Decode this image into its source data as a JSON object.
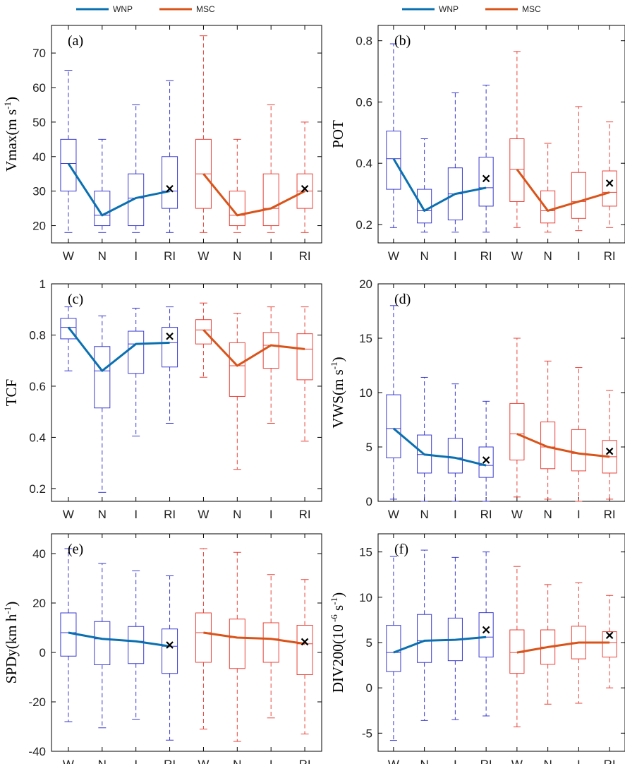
{
  "legend": {
    "entries": [
      {
        "name": "WNP",
        "color": "#0b70b0"
      },
      {
        "name": "MSC",
        "color": "#d9541a"
      }
    ]
  },
  "chart_data": [
    {
      "type": "box",
      "panel_label": "(a)",
      "ylabel": {
        "main": "Vmax(m s",
        "sup": "-1",
        "tail": ")"
      },
      "ylim": [
        15,
        78
      ],
      "yticks": [
        20,
        30,
        40,
        50,
        60,
        70
      ],
      "ytick_labels": [
        "20",
        "30",
        "40",
        "50",
        "60",
        "70"
      ],
      "categories": [
        "W",
        "N",
        "I",
        "RI"
      ],
      "series": [
        {
          "name": "WNP",
          "box_color": "#3b3bd0",
          "line_color": "#0b70b0",
          "boxes": [
            {
              "whislo": 18,
              "q1": 30,
              "med": 38,
              "q3": 45,
              "whishi": 65
            },
            {
              "whislo": 18,
              "q1": 20,
              "med": 23,
              "q3": 30,
              "whishi": 45
            },
            {
              "whislo": 18,
              "q1": 20,
              "med": 28,
              "q3": 35,
              "whishi": 55
            },
            {
              "whislo": 18,
              "q1": 25,
              "med": 30,
              "q3": 40,
              "whishi": 62
            }
          ],
          "mean_RI": 30.7
        },
        {
          "name": "MSC",
          "box_color": "#e8433a",
          "line_color": "#d9541a",
          "boxes": [
            {
              "whislo": 18,
              "q1": 25,
              "med": 35,
              "q3": 45,
              "whishi": 75
            },
            {
              "whislo": 18,
              "q1": 20,
              "med": 23,
              "q3": 30,
              "whishi": 45
            },
            {
              "whislo": 18,
              "q1": 20,
              "med": 25,
              "q3": 35,
              "whishi": 55
            },
            {
              "whislo": 18,
              "q1": 25,
              "med": 30,
              "q3": 35,
              "whishi": 50
            }
          ],
          "mean_RI": 30.7
        }
      ]
    },
    {
      "type": "box",
      "panel_label": "(b)",
      "ylabel": {
        "main": "POT",
        "sup": "",
        "tail": ""
      },
      "ylim": [
        0.14,
        0.85
      ],
      "yticks": [
        0.2,
        0.4,
        0.6,
        0.8
      ],
      "ytick_labels": [
        "0.2",
        "0.4",
        "0.6",
        "0.8"
      ],
      "categories": [
        "W",
        "N",
        "I",
        "RI"
      ],
      "series": [
        {
          "name": "WNP",
          "box_color": "#3b3bd0",
          "line_color": "#0b70b0",
          "boxes": [
            {
              "whislo": 0.19,
              "q1": 0.315,
              "med": 0.415,
              "q3": 0.505,
              "whishi": 0.79
            },
            {
              "whislo": 0.175,
              "q1": 0.205,
              "med": 0.245,
              "q3": 0.315,
              "whishi": 0.48
            },
            {
              "whislo": 0.175,
              "q1": 0.215,
              "med": 0.3,
              "q3": 0.385,
              "whishi": 0.63
            },
            {
              "whislo": 0.175,
              "q1": 0.26,
              "med": 0.32,
              "q3": 0.42,
              "whishi": 0.655
            }
          ],
          "mean_RI": 0.35
        },
        {
          "name": "MSC",
          "box_color": "#e8433a",
          "line_color": "#d9541a",
          "boxes": [
            {
              "whislo": 0.19,
              "q1": 0.275,
              "med": 0.38,
              "q3": 0.48,
              "whishi": 0.765
            },
            {
              "whislo": 0.175,
              "q1": 0.205,
              "med": 0.245,
              "q3": 0.31,
              "whishi": 0.465
            },
            {
              "whislo": 0.18,
              "q1": 0.22,
              "med": 0.275,
              "q3": 0.37,
              "whishi": 0.585
            },
            {
              "whislo": 0.19,
              "q1": 0.26,
              "med": 0.305,
              "q3": 0.375,
              "whishi": 0.535
            }
          ],
          "mean_RI": 0.335
        }
      ]
    },
    {
      "type": "box",
      "panel_label": "(c)",
      "ylabel": {
        "main": "TCF",
        "sup": "",
        "tail": ""
      },
      "ylim": [
        0.15,
        1.0
      ],
      "yticks": [
        0.2,
        0.4,
        0.6,
        0.8,
        1.0
      ],
      "ytick_labels": [
        "0.2",
        "0.4",
        "0.6",
        "0.8",
        "1"
      ],
      "categories": [
        "W",
        "N",
        "I",
        "RI"
      ],
      "series": [
        {
          "name": "WNP",
          "box_color": "#3b3bd0",
          "line_color": "#0b70b0",
          "boxes": [
            {
              "whislo": 0.66,
              "q1": 0.785,
              "med": 0.83,
              "q3": 0.865,
              "whishi": 0.91
            },
            {
              "whislo": 0.185,
              "q1": 0.515,
              "med": 0.66,
              "q3": 0.755,
              "whishi": 0.875
            },
            {
              "whislo": 0.405,
              "q1": 0.65,
              "med": 0.765,
              "q3": 0.815,
              "whishi": 0.905
            },
            {
              "whislo": 0.455,
              "q1": 0.675,
              "med": 0.77,
              "q3": 0.83,
              "whishi": 0.91
            }
          ],
          "mean_RI": 0.795
        },
        {
          "name": "MSC",
          "box_color": "#e8433a",
          "line_color": "#d9541a",
          "boxes": [
            {
              "whislo": 0.635,
              "q1": 0.765,
              "med": 0.82,
              "q3": 0.86,
              "whishi": 0.925
            },
            {
              "whislo": 0.275,
              "q1": 0.56,
              "med": 0.68,
              "q3": 0.77,
              "whishi": 0.885
            },
            {
              "whislo": 0.455,
              "q1": 0.67,
              "med": 0.76,
              "q3": 0.81,
              "whishi": 0.91
            },
            {
              "whislo": 0.385,
              "q1": 0.625,
              "med": 0.745,
              "q3": 0.805,
              "whishi": 0.91
            }
          ],
          "mean_RI": null
        }
      ]
    },
    {
      "type": "box",
      "panel_label": "(d)",
      "ylabel": {
        "main": "VWS(m s",
        "sup": "-1",
        "tail": ")"
      },
      "ylim": [
        0,
        20
      ],
      "yticks": [
        0,
        5,
        10,
        15,
        20
      ],
      "ytick_labels": [
        "0",
        "5",
        "10",
        "15",
        "20"
      ],
      "categories": [
        "W",
        "N",
        "I",
        "RI"
      ],
      "series": [
        {
          "name": "WNP",
          "box_color": "#3b3bd0",
          "line_color": "#0b70b0",
          "boxes": [
            {
              "whislo": 0.2,
              "q1": 4.0,
              "med": 6.7,
              "q3": 9.8,
              "whishi": 18.0
            },
            {
              "whislo": 0.0,
              "q1": 2.6,
              "med": 4.3,
              "q3": 6.1,
              "whishi": 11.4
            },
            {
              "whislo": 0.0,
              "q1": 2.6,
              "med": 4.0,
              "q3": 5.8,
              "whishi": 10.8
            },
            {
              "whislo": 0.0,
              "q1": 2.2,
              "med": 3.3,
              "q3": 5.0,
              "whishi": 9.2
            }
          ],
          "mean_RI": 3.8
        },
        {
          "name": "MSC",
          "box_color": "#e8433a",
          "line_color": "#d9541a",
          "boxes": [
            {
              "whislo": 0.4,
              "q1": 3.8,
              "med": 6.2,
              "q3": 9.0,
              "whishi": 15.0
            },
            {
              "whislo": 0.2,
              "q1": 3.0,
              "med": 5.0,
              "q3": 7.3,
              "whishi": 12.9
            },
            {
              "whislo": 0.0,
              "q1": 2.8,
              "med": 4.4,
              "q3": 6.6,
              "whishi": 12.3
            },
            {
              "whislo": 0.2,
              "q1": 2.6,
              "med": 4.1,
              "q3": 5.6,
              "whishi": 10.2
            }
          ],
          "mean_RI": 4.6
        }
      ]
    },
    {
      "type": "box",
      "panel_label": "(e)",
      "ylabel": {
        "main": "SPDy(km h",
        "sup": "-1",
        "tail": ")"
      },
      "ylim": [
        -40,
        48
      ],
      "yticks": [
        -40,
        -20,
        0,
        20,
        40
      ],
      "ytick_labels": [
        "-40",
        "-20",
        "0",
        "20",
        "40"
      ],
      "categories": [
        "W",
        "N",
        "I",
        "RI"
      ],
      "series": [
        {
          "name": "WNP",
          "box_color": "#3b3bd0",
          "line_color": "#0b70b0",
          "boxes": [
            {
              "whislo": -28,
              "q1": -1.5,
              "med": 8,
              "q3": 16,
              "whishi": 42
            },
            {
              "whislo": -30.5,
              "q1": -5,
              "med": 5.5,
              "q3": 12.5,
              "whishi": 36
            },
            {
              "whislo": -27,
              "q1": -4.5,
              "med": 4.5,
              "q3": 10.5,
              "whishi": 33
            },
            {
              "whislo": -35.5,
              "q1": -8.5,
              "med": 2.5,
              "q3": 9.5,
              "whishi": 31
            }
          ],
          "mean_RI": 3.0
        },
        {
          "name": "MSC",
          "box_color": "#e8433a",
          "line_color": "#d9541a",
          "boxes": [
            {
              "whislo": -31,
              "q1": -4,
              "med": 8,
              "q3": 16,
              "whishi": 42
            },
            {
              "whislo": -36,
              "q1": -6.5,
              "med": 6,
              "q3": 13.5,
              "whishi": 40.5
            },
            {
              "whislo": -26.5,
              "q1": -4,
              "med": 5.5,
              "q3": 12,
              "whishi": 31.5
            },
            {
              "whislo": -33,
              "q1": -9,
              "med": 3.5,
              "q3": 11,
              "whishi": 29.5
            }
          ],
          "mean_RI": 4.3
        }
      ]
    },
    {
      "type": "box",
      "panel_label": "(f)",
      "ylabel": {
        "main": "DIV200(10",
        "sup": " -6",
        "tail": " s",
        "sup2": "-1",
        "tail2": ")"
      },
      "ylim": [
        -7,
        17
      ],
      "yticks": [
        -5,
        0,
        5,
        10,
        15
      ],
      "ytick_labels": [
        "-5",
        "0",
        "5",
        "10",
        "15"
      ],
      "categories": [
        "W",
        "N",
        "I",
        "RI"
      ],
      "series": [
        {
          "name": "WNP",
          "box_color": "#3b3bd0",
          "line_color": "#0b70b0",
          "boxes": [
            {
              "whislo": -5.8,
              "q1": 1.8,
              "med": 3.9,
              "q3": 6.9,
              "whishi": 14.5
            },
            {
              "whislo": -3.6,
              "q1": 2.8,
              "med": 5.2,
              "q3": 8.1,
              "whishi": 15.2
            },
            {
              "whislo": -3.5,
              "q1": 3.0,
              "med": 5.3,
              "q3": 7.7,
              "whishi": 14.4
            },
            {
              "whislo": -3.1,
              "q1": 3.4,
              "med": 5.6,
              "q3": 8.3,
              "whishi": 15.0
            }
          ],
          "mean_RI": 6.4
        },
        {
          "name": "MSC",
          "box_color": "#e8433a",
          "line_color": "#d9541a",
          "boxes": [
            {
              "whislo": -4.3,
              "q1": 1.6,
              "med": 3.9,
              "q3": 6.4,
              "whishi": 13.4
            },
            {
              "whislo": -1.8,
              "q1": 2.6,
              "med": 4.5,
              "q3": 6.4,
              "whishi": 11.4
            },
            {
              "whislo": -1.7,
              "q1": 3.2,
              "med": 5.0,
              "q3": 6.8,
              "whishi": 11.6
            },
            {
              "whislo": 0.0,
              "q1": 3.4,
              "med": 5.0,
              "q3": 6.2,
              "whishi": 10.2
            }
          ],
          "mean_RI": 5.8
        }
      ]
    }
  ]
}
